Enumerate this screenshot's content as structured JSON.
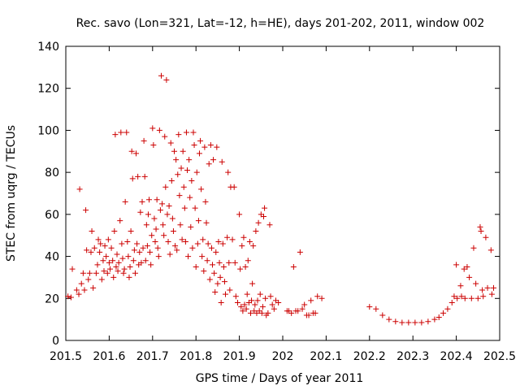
{
  "chart_data": {
    "type": "scatter",
    "title": "Rec. savo (Lon=321, Lat=-12, h=HE), days 201-202, 2011, window 002",
    "xlabel": "GPS time / Days of year 2011",
    "ylabel": "STEC from uqrg / TECUs",
    "xlim": [
      201.5,
      202.5
    ],
    "ylim": [
      0,
      140
    ],
    "grid": false,
    "marker": "+",
    "marker_color": "#cc0000",
    "x_ticks": [
      {
        "value": 201.5,
        "label": "201.5"
      },
      {
        "value": 201.6,
        "label": "201.6"
      },
      {
        "value": 201.7,
        "label": "201.7"
      },
      {
        "value": 201.8,
        "label": "201.8"
      },
      {
        "value": 201.9,
        "label": "201.9"
      },
      {
        "value": 202.0,
        "label": "202"
      },
      {
        "value": 202.1,
        "label": "202.1"
      },
      {
        "value": 202.2,
        "label": "202.2"
      },
      {
        "value": 202.3,
        "label": "202.3"
      },
      {
        "value": 202.4,
        "label": "202.4"
      },
      {
        "value": 202.5,
        "label": "202.5"
      }
    ],
    "y_ticks": [
      {
        "value": 0,
        "label": "0"
      },
      {
        "value": 20,
        "label": "20"
      },
      {
        "value": 40,
        "label": "40"
      },
      {
        "value": 60,
        "label": "60"
      },
      {
        "value": 80,
        "label": "80"
      },
      {
        "value": 100,
        "label": "100"
      },
      {
        "value": 120,
        "label": "120"
      },
      {
        "value": 140,
        "label": "140"
      }
    ],
    "points": [
      [
        201.505,
        21
      ],
      [
        201.512,
        20.5
      ],
      [
        201.515,
        34
      ],
      [
        201.525,
        24
      ],
      [
        201.53,
        22
      ],
      [
        201.532,
        72
      ],
      [
        201.536,
        27
      ],
      [
        201.54,
        32
      ],
      [
        201.543,
        24
      ],
      [
        201.546,
        62
      ],
      [
        201.548,
        43
      ],
      [
        201.552,
        29
      ],
      [
        201.555,
        32
      ],
      [
        201.558,
        42
      ],
      [
        201.56,
        52
      ],
      [
        201.563,
        25
      ],
      [
        201.566,
        44
      ],
      [
        201.57,
        32
      ],
      [
        201.573,
        36
      ],
      [
        201.575,
        48
      ],
      [
        201.578,
        42
      ],
      [
        201.58,
        46
      ],
      [
        201.583,
        29
      ],
      [
        201.586,
        38
      ],
      [
        201.588,
        33
      ],
      [
        201.59,
        45
      ],
      [
        201.593,
        40
      ],
      [
        201.596,
        32
      ],
      [
        201.598,
        48
      ],
      [
        201.6,
        37
      ],
      [
        201.602,
        34
      ],
      [
        201.605,
        44
      ],
      [
        201.608,
        38
      ],
      [
        201.61,
        30
      ],
      [
        201.612,
        52
      ],
      [
        201.614,
        98
      ],
      [
        201.616,
        35
      ],
      [
        201.618,
        41
      ],
      [
        201.62,
        33
      ],
      [
        201.622,
        37
      ],
      [
        201.625,
        57
      ],
      [
        201.627,
        99
      ],
      [
        201.629,
        46
      ],
      [
        201.631,
        39
      ],
      [
        201.633,
        32
      ],
      [
        201.635,
        34
      ],
      [
        201.637,
        66
      ],
      [
        201.64,
        99
      ],
      [
        201.642,
        47
      ],
      [
        201.644,
        40
      ],
      [
        201.646,
        30
      ],
      [
        201.648,
        35
      ],
      [
        201.65,
        52
      ],
      [
        201.652,
        90
      ],
      [
        201.654,
        77
      ],
      [
        201.656,
        38
      ],
      [
        201.658,
        43
      ],
      [
        201.66,
        32
      ],
      [
        201.662,
        89
      ],
      [
        201.664,
        46
      ],
      [
        201.666,
        78
      ],
      [
        201.668,
        36
      ],
      [
        201.67,
        42
      ],
      [
        201.672,
        61
      ],
      [
        201.674,
        37
      ],
      [
        201.676,
        66
      ],
      [
        201.678,
        44
      ],
      [
        201.68,
        95
      ],
      [
        201.682,
        78
      ],
      [
        201.684,
        38
      ],
      [
        201.686,
        55
      ],
      [
        201.688,
        45
      ],
      [
        201.69,
        60
      ],
      [
        201.692,
        67
      ],
      [
        201.694,
        42
      ],
      [
        201.696,
        36
      ],
      [
        201.698,
        50
      ],
      [
        201.7,
        101
      ],
      [
        201.702,
        93
      ],
      [
        201.704,
        58
      ],
      [
        201.706,
        47
      ],
      [
        201.708,
        53
      ],
      [
        201.71,
        67
      ],
      [
        201.712,
        44
      ],
      [
        201.714,
        40
      ],
      [
        201.716,
        100
      ],
      [
        201.718,
        62
      ],
      [
        201.72,
        126
      ],
      [
        201.722,
        65
      ],
      [
        201.724,
        55
      ],
      [
        201.726,
        50
      ],
      [
        201.728,
        97
      ],
      [
        201.73,
        73
      ],
      [
        201.732,
        124
      ],
      [
        201.734,
        60
      ],
      [
        201.736,
        47
      ],
      [
        201.738,
        64
      ],
      [
        201.74,
        41
      ],
      [
        201.742,
        94
      ],
      [
        201.744,
        76
      ],
      [
        201.746,
        58
      ],
      [
        201.748,
        52
      ],
      [
        201.75,
        90
      ],
      [
        201.752,
        45
      ],
      [
        201.754,
        86
      ],
      [
        201.756,
        43
      ],
      [
        201.758,
        79
      ],
      [
        201.76,
        98
      ],
      [
        201.762,
        69
      ],
      [
        201.764,
        55
      ],
      [
        201.766,
        82
      ],
      [
        201.768,
        48
      ],
      [
        201.77,
        90
      ],
      [
        201.772,
        73
      ],
      [
        201.774,
        63
      ],
      [
        201.776,
        47
      ],
      [
        201.778,
        99
      ],
      [
        201.78,
        81
      ],
      [
        201.782,
        40
      ],
      [
        201.784,
        86
      ],
      [
        201.786,
        68
      ],
      [
        201.788,
        54
      ],
      [
        201.79,
        76
      ],
      [
        201.792,
        44
      ],
      [
        201.794,
        99
      ],
      [
        201.796,
        93
      ],
      [
        201.798,
        63
      ],
      [
        201.8,
        35
      ],
      [
        201.802,
        80
      ],
      [
        201.804,
        46
      ],
      [
        201.806,
        57
      ],
      [
        201.808,
        89
      ],
      [
        201.81,
        95
      ],
      [
        201.812,
        72
      ],
      [
        201.814,
        40
      ],
      [
        201.816,
        48
      ],
      [
        201.818,
        33
      ],
      [
        201.82,
        92
      ],
      [
        201.822,
        66
      ],
      [
        201.824,
        56
      ],
      [
        201.826,
        38
      ],
      [
        201.828,
        46
      ],
      [
        201.83,
        84
      ],
      [
        201.832,
        29
      ],
      [
        201.834,
        93
      ],
      [
        201.836,
        44
      ],
      [
        201.838,
        36
      ],
      [
        201.84,
        86
      ],
      [
        201.842,
        32
      ],
      [
        201.844,
        23
      ],
      [
        201.846,
        42
      ],
      [
        201.848,
        92
      ],
      [
        201.85,
        27
      ],
      [
        201.852,
        47
      ],
      [
        201.854,
        37
      ],
      [
        201.856,
        30
      ],
      [
        201.858,
        18
      ],
      [
        201.86,
        85
      ],
      [
        201.862,
        46
      ],
      [
        201.864,
        35
      ],
      [
        201.866,
        28
      ],
      [
        201.868,
        22
      ],
      [
        201.872,
        49
      ],
      [
        201.874,
        80
      ],
      [
        201.876,
        37
      ],
      [
        201.878,
        24
      ],
      [
        201.88,
        73
      ],
      [
        201.884,
        48
      ],
      [
        201.888,
        73
      ],
      [
        201.89,
        37
      ],
      [
        201.892,
        21
      ],
      [
        201.896,
        18
      ],
      [
        201.9,
        60
      ],
      [
        201.902,
        34
      ],
      [
        201.904,
        16
      ],
      [
        201.906,
        45
      ],
      [
        201.908,
        14
      ],
      [
        201.91,
        49
      ],
      [
        201.912,
        17
      ],
      [
        201.914,
        35
      ],
      [
        201.916,
        15
      ],
      [
        201.918,
        22
      ],
      [
        201.92,
        38
      ],
      [
        201.922,
        18
      ],
      [
        201.924,
        47
      ],
      [
        201.926,
        13
      ],
      [
        201.928,
        19
      ],
      [
        201.93,
        27
      ],
      [
        201.932,
        45
      ],
      [
        201.934,
        14
      ],
      [
        201.936,
        17
      ],
      [
        201.938,
        52
      ],
      [
        201.94,
        13
      ],
      [
        201.942,
        19
      ],
      [
        201.944,
        56
      ],
      [
        201.946,
        14
      ],
      [
        201.948,
        22
      ],
      [
        201.95,
        60
      ],
      [
        201.952,
        13
      ],
      [
        201.954,
        16
      ],
      [
        201.956,
        59
      ],
      [
        201.958,
        63
      ],
      [
        201.96,
        20
      ],
      [
        201.962,
        12
      ],
      [
        201.966,
        13
      ],
      [
        201.97,
        55
      ],
      [
        201.972,
        21
      ],
      [
        201.976,
        17
      ],
      [
        201.98,
        15
      ],
      [
        201.984,
        19
      ],
      [
        201.99,
        18
      ],
      [
        202.01,
        14
      ],
      [
        202.014,
        14
      ],
      [
        202.02,
        13
      ],
      [
        202.025,
        35
      ],
      [
        202.03,
        14
      ],
      [
        202.035,
        14
      ],
      [
        202.04,
        42
      ],
      [
        202.045,
        15
      ],
      [
        202.05,
        17
      ],
      [
        202.055,
        12
      ],
      [
        202.06,
        12
      ],
      [
        202.065,
        19
      ],
      [
        202.07,
        13
      ],
      [
        202.075,
        13
      ],
      [
        202.08,
        21
      ],
      [
        202.09,
        20
      ],
      [
        202.2,
        16
      ],
      [
        202.215,
        15
      ],
      [
        202.23,
        12
      ],
      [
        202.245,
        10
      ],
      [
        202.26,
        9
      ],
      [
        202.275,
        8.5
      ],
      [
        202.29,
        8.5
      ],
      [
        202.305,
        8.5
      ],
      [
        202.32,
        8.5
      ],
      [
        202.335,
        9
      ],
      [
        202.35,
        10
      ],
      [
        202.36,
        11
      ],
      [
        202.37,
        13
      ],
      [
        202.38,
        15
      ],
      [
        202.39,
        18
      ],
      [
        202.395,
        21
      ],
      [
        202.4,
        36
      ],
      [
        202.402,
        20
      ],
      [
        202.41,
        26
      ],
      [
        202.412,
        21
      ],
      [
        202.418,
        34
      ],
      [
        202.42,
        20
      ],
      [
        202.425,
        35
      ],
      [
        202.43,
        30
      ],
      [
        202.435,
        20
      ],
      [
        202.44,
        44
      ],
      [
        202.445,
        27
      ],
      [
        202.45,
        20
      ],
      [
        202.455,
        54
      ],
      [
        202.457,
        52
      ],
      [
        202.46,
        24
      ],
      [
        202.462,
        21
      ],
      [
        202.468,
        49
      ],
      [
        202.472,
        25
      ],
      [
        202.48,
        43
      ],
      [
        202.482,
        22
      ],
      [
        202.486,
        25
      ]
    ]
  }
}
